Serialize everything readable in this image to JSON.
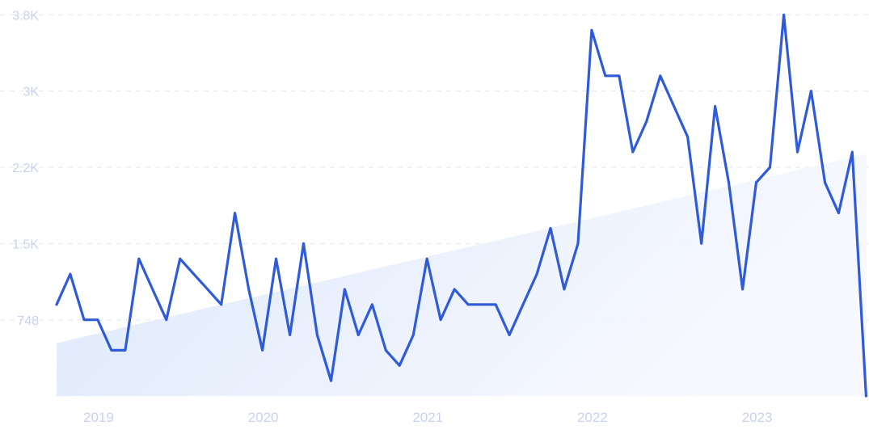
{
  "chart_data": {
    "type": "line",
    "title": "",
    "xlabel": "",
    "ylabel": "",
    "x_range": [
      2018.75,
      2023.67
    ],
    "ylim": [
      0,
      3800
    ],
    "y_ticks": [
      {
        "value": 748,
        "label": "748"
      },
      {
        "value": 1500,
        "label": "1.5K"
      },
      {
        "value": 2250,
        "label": "2.2K"
      },
      {
        "value": 3000,
        "label": "3K"
      },
      {
        "value": 3750,
        "label": "3.8K"
      }
    ],
    "x_ticks": [
      {
        "value": 2019,
        "label": "2019"
      },
      {
        "value": 2020,
        "label": "2020"
      },
      {
        "value": 2021,
        "label": "2021"
      },
      {
        "value": 2022,
        "label": "2022"
      },
      {
        "value": 2023,
        "label": "2023"
      }
    ],
    "grid": true,
    "series": [
      {
        "color": "#2f5bd9",
        "x": [
          2018.75,
          2018.833,
          2018.917,
          2019.0,
          2019.083,
          2019.167,
          2019.25,
          2019.333,
          2019.417,
          2019.5,
          2019.583,
          2019.667,
          2019.75,
          2019.833,
          2019.917,
          2020.0,
          2020.083,
          2020.167,
          2020.25,
          2020.333,
          2020.417,
          2020.5,
          2020.583,
          2020.667,
          2020.75,
          2020.833,
          2020.917,
          2021.0,
          2021.083,
          2021.167,
          2021.25,
          2021.333,
          2021.417,
          2021.5,
          2021.583,
          2021.667,
          2021.75,
          2021.833,
          2021.917,
          2022.0,
          2022.083,
          2022.167,
          2022.25,
          2022.333,
          2022.417,
          2022.5,
          2022.583,
          2022.667,
          2022.75,
          2022.833,
          2022.917,
          2023.0,
          2023.083,
          2023.167,
          2023.25,
          2023.333,
          2023.417,
          2023.5,
          2023.583,
          2023.667
        ],
        "values": [
          900,
          1200,
          750,
          750,
          450,
          450,
          1350,
          1050,
          750,
          1350,
          1200,
          1050,
          900,
          1800,
          1050,
          450,
          1350,
          600,
          1500,
          600,
          150,
          1050,
          600,
          900,
          450,
          300,
          600,
          1350,
          750,
          1050,
          900,
          900,
          900,
          600,
          900,
          1200,
          1650,
          1050,
          1500,
          3600,
          3150,
          3150,
          2400,
          2700,
          3150,
          2850,
          2550,
          1500,
          2850,
          2100,
          1050,
          2100,
          2250,
          3750,
          2400,
          3000,
          2100,
          1800,
          2400,
          0
        ]
      },
      {
        "type": "area",
        "role": "trend",
        "x": [
          2018.75,
          2023.67
        ],
        "values": [
          520,
          2380
        ]
      }
    ]
  }
}
